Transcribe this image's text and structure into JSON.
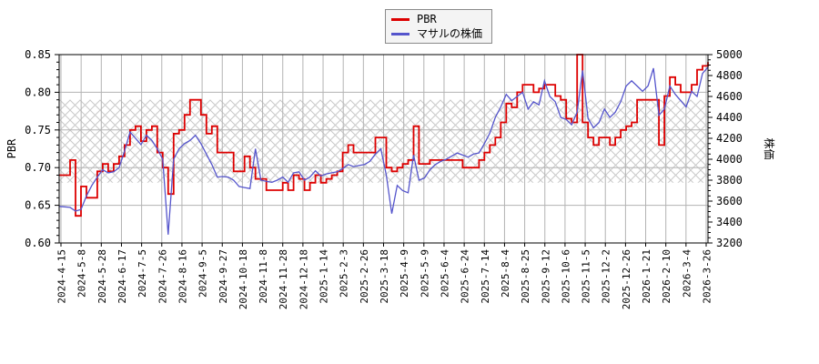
{
  "legend": {
    "items": [
      {
        "label": "PBR",
        "color": "#dd0000"
      },
      {
        "label": "マサルの株価",
        "color": "#5555cc"
      }
    ]
  },
  "chart_data": {
    "type": "line",
    "title": "",
    "grid": true,
    "legend_position": "top-center",
    "left_axis": {
      "label": "PBR",
      "min": 0.6,
      "max": 0.85,
      "tick_step": 0.05,
      "minor_step": 0.01
    },
    "right_axis": {
      "label": "株価",
      "min": 3200,
      "max": 5000,
      "tick_step": 200,
      "minor_step": 50
    },
    "band": {
      "style": "crosshatch",
      "axis": "left",
      "from": 0.68,
      "to": 0.79,
      "color": "#c9c9c9"
    },
    "x_axis": {
      "tick_labels": [
        "2024-4-15",
        "2024-5-8",
        "2024-5-28",
        "2024-6-17",
        "2024-7-5",
        "2024-7-26",
        "2024-8-16",
        "2024-9-5",
        "2024-9-27",
        "2024-10-18",
        "2024-11-8",
        "2024-11-28",
        "2024-12-18",
        "2025-1-14",
        "2025-2-3",
        "2025-2-26",
        "2025-3-18",
        "2025-4-9",
        "2025-5-9",
        "2025-6-4",
        "2025-6-24",
        "2025-7-14",
        "2025-8-4",
        "2025-8-25",
        "2025-9-12",
        "2025-10-6",
        "2025-11-5",
        "2025-12-2",
        "2025-12-26",
        "2026-1-21",
        "2026-2-10",
        "2026-3-4",
        "2026-3-26"
      ]
    },
    "series": [
      {
        "name": "PBR",
        "axis": "left",
        "color": "#dd0000",
        "style": "step",
        "values": [
          0.69,
          0.69,
          0.71,
          0.636,
          0.675,
          0.66,
          0.66,
          0.695,
          0.705,
          0.695,
          0.705,
          0.715,
          0.73,
          0.75,
          0.755,
          0.735,
          0.75,
          0.755,
          0.72,
          0.7,
          0.665,
          0.745,
          0.75,
          0.77,
          0.79,
          0.79,
          0.77,
          0.745,
          0.755,
          0.72,
          0.72,
          0.72,
          0.695,
          0.695,
          0.715,
          0.7,
          0.685,
          0.685,
          0.67,
          0.67,
          0.67,
          0.68,
          0.67,
          0.69,
          0.685,
          0.67,
          0.68,
          0.69,
          0.68,
          0.685,
          0.69,
          0.695,
          0.72,
          0.73,
          0.72,
          0.72,
          0.72,
          0.72,
          0.74,
          0.74,
          0.7,
          0.695,
          0.7,
          0.705,
          0.71,
          0.755,
          0.705,
          0.705,
          0.71,
          0.71,
          0.71,
          0.71,
          0.71,
          0.71,
          0.7,
          0.7,
          0.7,
          0.71,
          0.72,
          0.73,
          0.74,
          0.76,
          0.785,
          0.78,
          0.8,
          0.81,
          0.81,
          0.8,
          0.805,
          0.81,
          0.81,
          0.795,
          0.79,
          0.765,
          0.76,
          0.85,
          0.76,
          0.74,
          0.73,
          0.74,
          0.74,
          0.73,
          0.74,
          0.75,
          0.755,
          0.76,
          0.79,
          0.79,
          0.79,
          0.79,
          0.73,
          0.795,
          0.82,
          0.81,
          0.8,
          0.8,
          0.81,
          0.83,
          0.835,
          0.84
        ]
      },
      {
        "name": "マサルの株価",
        "axis": "right",
        "color": "#5555cc",
        "style": "line",
        "values": [
          3550,
          3545,
          3540,
          3505,
          3520,
          3650,
          3750,
          3830,
          3900,
          3870,
          3880,
          3920,
          4080,
          4260,
          4200,
          4140,
          4230,
          4180,
          4100,
          4000,
          3280,
          4000,
          4100,
          4150,
          4180,
          4230,
          4150,
          4050,
          3950,
          3830,
          3835,
          3830,
          3800,
          3740,
          3730,
          3720,
          4100,
          3800,
          3790,
          3780,
          3800,
          3830,
          3780,
          3870,
          3880,
          3800,
          3830,
          3890,
          3840,
          3860,
          3870,
          3880,
          3910,
          3950,
          3930,
          3940,
          3950,
          3980,
          4050,
          4100,
          3850,
          3480,
          3750,
          3700,
          3680,
          4040,
          3800,
          3820,
          3900,
          3950,
          3980,
          4000,
          4030,
          4060,
          4040,
          4020,
          4050,
          4060,
          4150,
          4250,
          4400,
          4500,
          4620,
          4560,
          4600,
          4640,
          4480,
          4550,
          4520,
          4750,
          4600,
          4550,
          4400,
          4380,
          4330,
          4450,
          4850,
          4390,
          4300,
          4350,
          4480,
          4400,
          4450,
          4550,
          4700,
          4750,
          4700,
          4650,
          4700,
          4870,
          4420,
          4480,
          4700,
          4620,
          4560,
          4500,
          4650,
          4600,
          4820,
          4880
        ]
      }
    ]
  }
}
